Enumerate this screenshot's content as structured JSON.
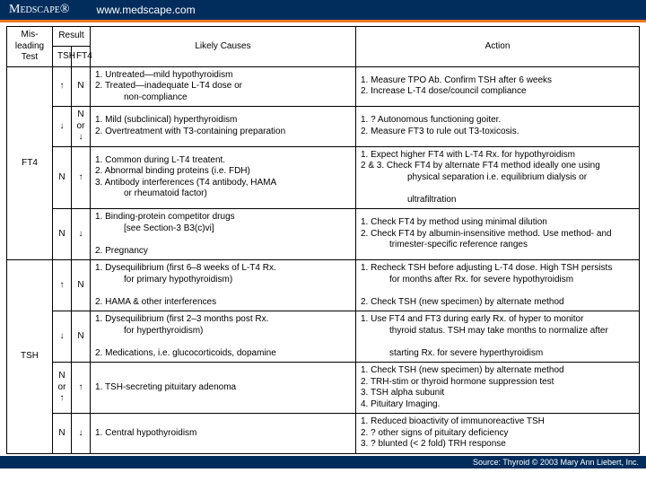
{
  "header": {
    "logo_html": "M<span class='small-caps'>edscape</span>®",
    "url": "www.medscape.com"
  },
  "table": {
    "head": {
      "misleading": "Mis-\nleading\nTest",
      "result": "Result",
      "tsh": "TSH",
      "ft4": "FT4",
      "causes": "Likely Causes",
      "action": "Action"
    },
    "groups": [
      {
        "test": "FT4",
        "rows": [
          {
            "tsh": "↑",
            "ft4": "N",
            "causes": "1.  Untreated—mild hypothyroidism\n2.  Treated—inadequate L-T4 dose or\n<span class='indent'>non-compliance</span>",
            "action": "1.  Measure TPO Ab. Confirm TSH after 6 weeks\n2.  Increase L-T4 dose/council compliance"
          },
          {
            "tsh": "↓",
            "ft4": "N\nor ↓",
            "causes": "1.  Mild (subclinical) hyperthyroidism\n2.  Overtreatment with T3-containing preparation",
            "action": "1.  ? Autonomous functioning goiter.\n2.  Measure FT3 to rule out T3-toxicosis."
          },
          {
            "tsh": "N",
            "ft4": "↑",
            "causes": "1.  Common during L-T4 treatent.\n2.  Abnormal binding proteins (i.e. FDH)\n3.  Antibody interferences (T4 antibody, HAMA\n<span class='indent'>or rheumatoid factor)</span>",
            "action": "1.  Expect higher FT4 with L-T4 Rx. for hypothyroidism\n2 & 3.  Check FT4 by alternate FT4 method ideally one using\n<span class='indent2'>physical separation i.e. equilibrium dialysis or</span>\n<span class='indent2'>ultrafiltration</span>"
          },
          {
            "tsh": "N",
            "ft4": "↓",
            "causes": "1.  Binding-protein competitor drugs\n<span class='indent'>[see Section-3 B3(c)vi]</span>\n2.  Pregnancy",
            "action": "1.  Check FT4 by method using minimal dilution\n2.  Check FT4 by albumin-insensitive method. Use method- and\n<span class='indent'>trimester-specific reference ranges</span>"
          }
        ]
      },
      {
        "test": "TSH",
        "rows": [
          {
            "tsh": "↑",
            "ft4": "N",
            "causes": "1.  Dysequilibrium (first 6–8 weeks of L-T4 Rx.\n<span class='indent'>for primary hypothyroidism)</span>\n2.  HAMA & other interferences",
            "action": "1.  Recheck TSH before adjusting L-T4 dose. High TSH persists\n<span class='indent'>for months after Rx. for severe hypothyroidism</span>\n2.  Check TSH (new specimen) by alternate method"
          },
          {
            "tsh": "↓",
            "ft4": "N",
            "causes": "1.  Dysequilibrium (first 2–3 months post Rx.\n<span class='indent'>for hyperthyroidism)</span>\n2.  Medications, i.e. glucocorticoids, dopamine",
            "action": "1.  Use FT4 and FT3 during early Rx. of hyper to monitor\n<span class='indent'>thyroid status. TSH may take months to normalize after</span>\n<span class='indent'>starting Rx. for severe hyperthyroidism</span>"
          },
          {
            "tsh": "N\nor ↑",
            "ft4": "↑",
            "causes": "1.  TSH-secreting pituitary adenoma",
            "action": "1.  Check TSH (new specimen) by alternate method\n2.  TRH-stim or thyroid hormone suppression test\n3.  TSH alpha subunit\n4.  Pituitary Imaging."
          },
          {
            "tsh": "N",
            "ft4": "↓",
            "causes": "1.  Central hypothyroidism",
            "action": "1.  Reduced bioactivity of immunoreactive TSH\n2.  ? other signs of pituitary deficiency\n3.  ? blunted (< 2 fold) TRH response"
          }
        ]
      }
    ]
  },
  "footer": "Source: Thyroid © 2003 Mary Ann Liebert, Inc."
}
